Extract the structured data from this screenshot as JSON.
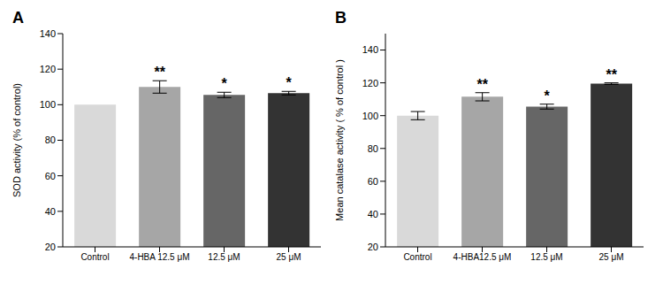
{
  "chart_data": [
    {
      "type": "bar",
      "title": "A",
      "y_label": "SOD activity (% of control)",
      "categories": [
        "Control",
        "4-HBA 12.5 μM",
        "12.5 μM",
        "25 μM"
      ],
      "values": [
        100,
        110,
        105.5,
        106.5
      ],
      "errors": [
        0,
        3.5,
        1.5,
        1
      ],
      "significance": [
        null,
        "**",
        "*",
        "*"
      ],
      "colors": [
        "#d9d9d9",
        "#a6a6a6",
        "#666666",
        "#333333"
      ],
      "ylim": [
        20,
        140
      ],
      "yticks": [
        20,
        40,
        60,
        80,
        100,
        120,
        140
      ],
      "grid": false
    },
    {
      "type": "bar",
      "title": "B",
      "y_label": "Mean catalase activity ( % of control )",
      "categories": [
        "Control",
        "4-HBA12.5 μM",
        "12.5 μM",
        "25 μM"
      ],
      "values": [
        100,
        111.5,
        105.5,
        119.5
      ],
      "errors": [
        2.5,
        2.5,
        1.5,
        0.5
      ],
      "significance": [
        null,
        "**",
        "*",
        "**"
      ],
      "colors": [
        "#d9d9d9",
        "#a6a6a6",
        "#666666",
        "#333333"
      ],
      "ylim": [
        20,
        150
      ],
      "yticks": [
        20,
        40,
        60,
        80,
        100,
        120,
        140
      ],
      "grid": false
    }
  ]
}
